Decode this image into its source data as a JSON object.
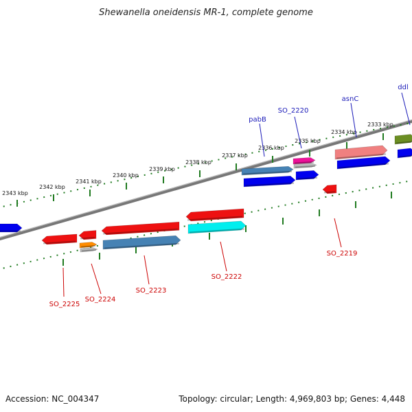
{
  "title": "Shewanella oneidensis MR-1, complete genome",
  "footer": {
    "accession": "Accession: NC_004347",
    "summary": "Topology: circular; Length: 4,969,803 bp; Genes: 4,448"
  },
  "ticks": [
    "2343 kbp",
    "2342 kbp",
    "2341 kbp",
    "2340 kbp",
    "2339 kbp",
    "2338 kbp",
    "2337 kbp",
    "2336 kbp",
    "2335 kbp",
    "2334 kbp",
    "2333 kbp"
  ],
  "gene_labels_top": [
    "pabB",
    "SO_2220",
    "asnC",
    "ddl"
  ],
  "gene_labels_bottom": [
    "SO_2225",
    "SO_2224",
    "SO_2223",
    "SO_2222",
    "SO_2219"
  ],
  "colors": {
    "red": "#ee1111",
    "blue": "#0000ee",
    "steelblue": "#4682b4",
    "cyan": "#00eeee",
    "orange": "#ff8c00",
    "magenta": "#ee1199",
    "salmon": "#f08080",
    "olive": "#6b8e23",
    "grey": "#bbbbbb",
    "tick": "#1f7a1f",
    "backbone": "#808080"
  }
}
